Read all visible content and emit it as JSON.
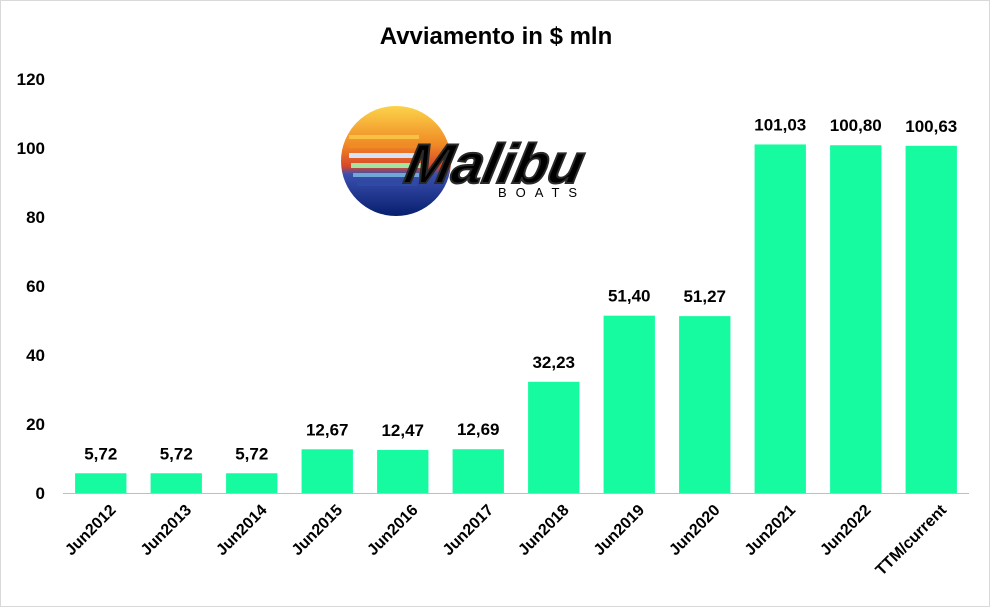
{
  "chart_data": {
    "type": "bar",
    "title": "Avviamento in $ mln",
    "categories": [
      "Jun2012",
      "Jun2013",
      "Jun2014",
      "Jun2015",
      "Jun2016",
      "Jun2017",
      "Jun2018",
      "Jun2019",
      "Jun2020",
      "Jun2021",
      "Jun2022",
      "TTM/current"
    ],
    "values": [
      5.72,
      5.72,
      5.72,
      12.67,
      12.47,
      12.69,
      32.23,
      51.4,
      51.27,
      101.03,
      100.8,
      100.63
    ],
    "value_labels": [
      "5,72",
      "5,72",
      "5,72",
      "12,67",
      "12,47",
      "12,69",
      "32,23",
      "51,40",
      "51,27",
      "101,03",
      "100,80",
      "100,63"
    ],
    "yticks": [
      "0",
      "20",
      "40",
      "60",
      "80",
      "100",
      "120"
    ],
    "ylim": [
      0,
      120
    ],
    "grid": false,
    "legend": false,
    "bar_color": "#17fba0",
    "xlabel": "",
    "ylabel": ""
  },
  "logo": {
    "name": "Malibu",
    "sub": "BOATS",
    "colors": {
      "sun_top": "#f5a623",
      "sun_mid": "#e8542a",
      "sun_bottom": "#0a2a8c",
      "text": "#555555"
    }
  }
}
